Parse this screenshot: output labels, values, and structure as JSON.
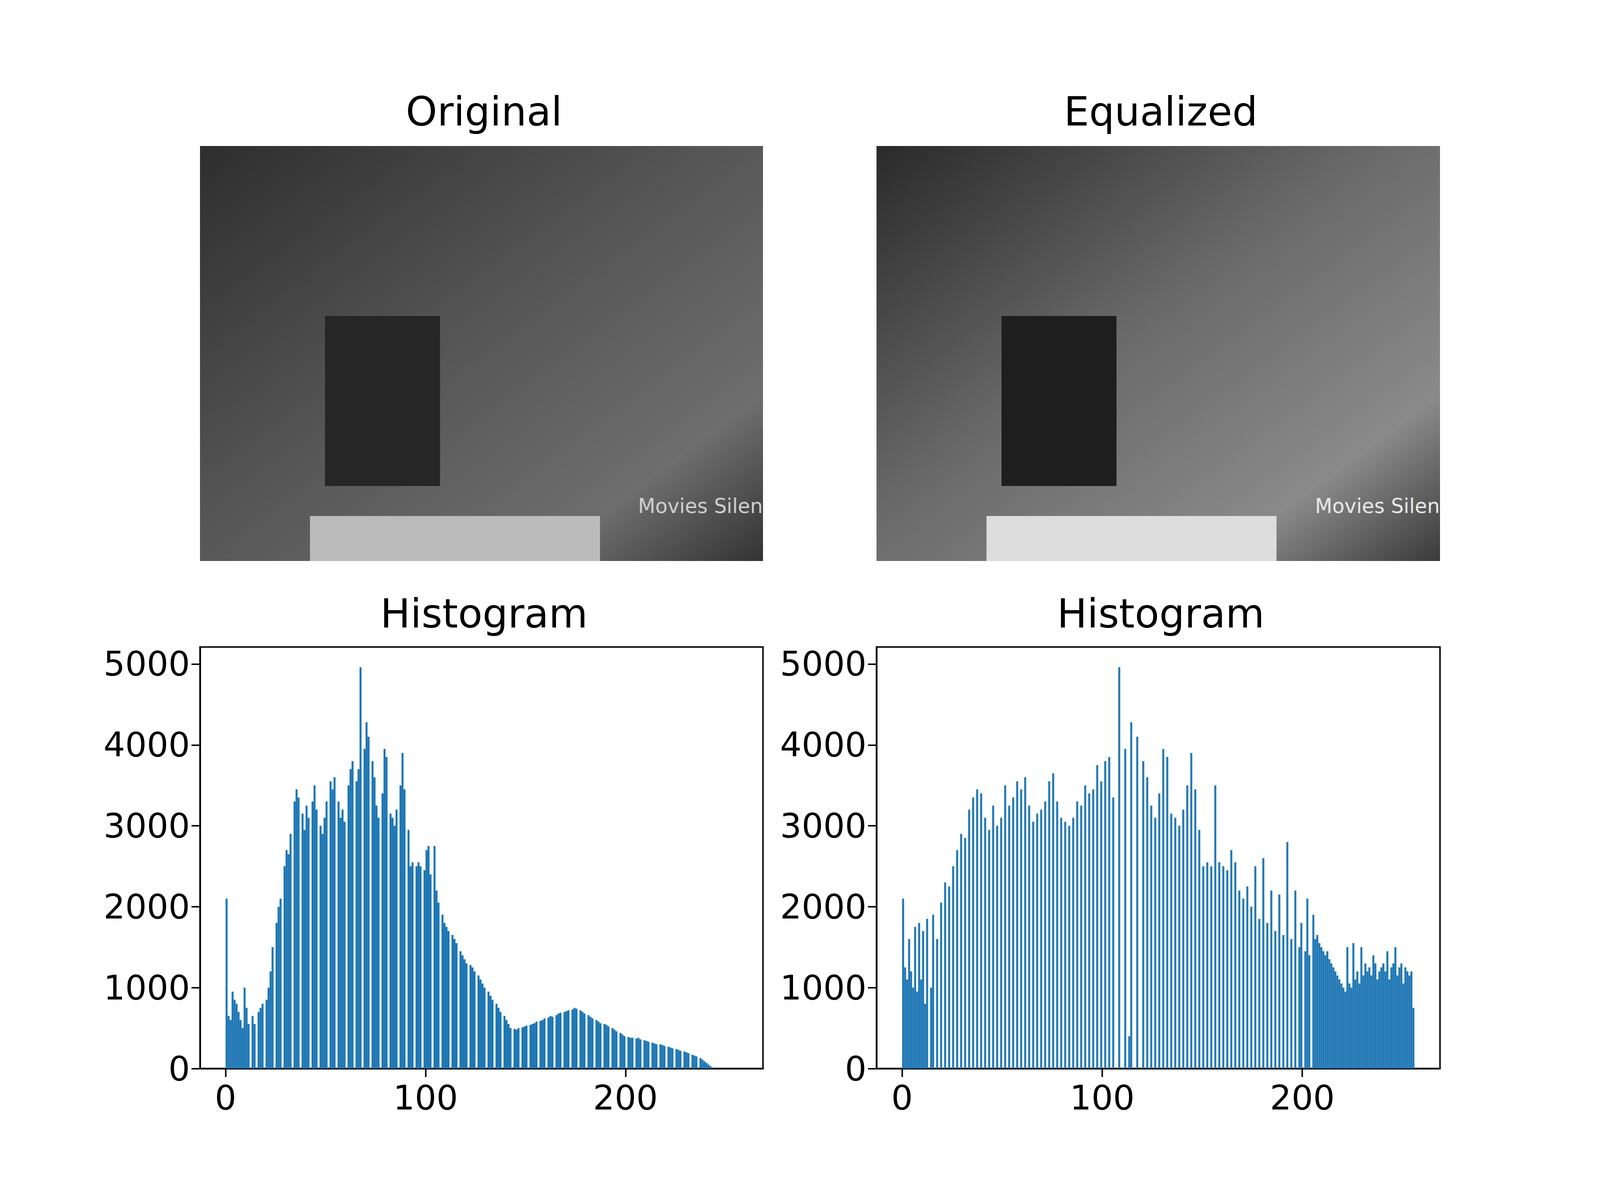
{
  "chart_data": [
    {
      "type": "image",
      "title": "Original",
      "text": "Movies Silen"
    },
    {
      "type": "image",
      "title": "Equalized",
      "text": "Movies Silen"
    },
    {
      "type": "histogram",
      "title": "Histogram",
      "color": "#1f77b4",
      "bins": [
        0,
        1,
        2,
        3,
        4,
        5,
        6,
        7,
        8,
        9,
        10,
        11,
        12,
        13,
        14,
        15,
        16,
        17,
        18,
        19,
        20,
        21,
        22,
        23,
        24,
        25,
        26,
        27,
        28,
        29,
        30,
        31,
        32,
        33,
        34,
        35,
        36,
        37,
        38,
        39,
        40,
        41,
        42,
        43,
        44,
        45,
        46,
        47,
        48,
        49,
        50,
        51,
        52,
        53,
        54,
        55,
        56,
        57,
        58,
        59,
        60,
        61,
        62,
        63,
        64,
        65,
        66,
        67,
        68,
        69,
        70,
        71,
        72,
        73,
        74,
        75,
        76,
        77,
        78,
        79,
        80,
        81,
        82,
        83,
        84,
        85,
        86,
        87,
        88,
        89,
        90,
        91,
        92,
        93,
        94,
        95,
        96,
        97,
        98,
        99,
        100,
        101,
        102,
        103,
        104,
        105,
        106,
        107,
        108,
        109,
        110,
        111,
        112,
        113,
        114,
        115,
        116,
        117,
        118,
        119,
        120,
        121,
        122,
        123,
        124,
        125,
        126,
        127,
        128,
        129,
        130,
        131,
        132,
        133,
        134,
        135,
        136,
        137,
        138,
        139,
        140,
        141,
        142,
        143,
        144,
        145,
        146,
        147,
        148,
        149,
        150,
        151,
        152,
        153,
        154,
        155,
        156,
        157,
        158,
        159,
        160,
        161,
        162,
        163,
        164,
        165,
        166,
        167,
        168,
        169,
        170,
        171,
        172,
        173,
        174,
        175,
        176,
        177,
        178,
        179,
        180,
        181,
        182,
        183,
        184,
        185,
        186,
        187,
        188,
        189,
        190,
        191,
        192,
        193,
        194,
        195,
        196,
        197,
        198,
        199,
        200,
        201,
        202,
        203,
        204,
        205,
        206,
        207,
        208,
        209,
        210,
        211,
        212,
        213,
        214,
        215,
        216,
        217,
        218,
        219,
        220,
        221,
        222,
        223,
        224,
        225,
        226,
        227,
        228,
        229,
        230,
        231,
        232,
        233,
        234,
        235,
        236,
        237,
        238,
        239,
        240,
        241,
        242,
        243,
        244,
        245,
        246,
        247,
        248,
        249,
        250,
        251,
        252,
        253,
        254,
        255,
        256
      ],
      "counts": [
        2100,
        650,
        600,
        950,
        850,
        800,
        700,
        600,
        500,
        1000,
        750,
        550,
        0,
        650,
        550,
        0,
        700,
        750,
        800,
        0,
        850,
        1000,
        1200,
        1500,
        0,
        1800,
        2000,
        2100,
        0,
        2500,
        2700,
        2650,
        2900,
        0,
        3300,
        3450,
        3350,
        0,
        3150,
        2950,
        3250,
        3100,
        0,
        3300,
        3500,
        3200,
        0,
        3000,
        2900,
        3100,
        3300,
        0,
        3550,
        3450,
        3600,
        0,
        3300,
        3100,
        3200,
        3050,
        0,
        3500,
        3700,
        3800,
        0,
        3550,
        3700,
        4960,
        0,
        3950,
        4280,
        4100,
        0,
        3800,
        3600,
        3250,
        3100,
        0,
        3400,
        3950,
        3850,
        0,
        3150,
        3100,
        3000,
        3200,
        0,
        3500,
        3900,
        3450,
        0,
        2950,
        2500,
        2550,
        0,
        2500,
        2550,
        2500,
        0,
        2450,
        2700,
        2750,
        2400,
        0,
        2750,
        2200,
        2050,
        0,
        1900,
        1800,
        1750,
        1700,
        0,
        1650,
        1600,
        1550,
        0,
        1450,
        1400,
        1350,
        1300,
        0,
        1280,
        1250,
        1200,
        0,
        1150,
        1100,
        1050,
        1000,
        0,
        950,
        900,
        850,
        0,
        800,
        750,
        700,
        0,
        650,
        600,
        550,
        500,
        0,
        490,
        480,
        500,
        0,
        510,
        520,
        530,
        0,
        540,
        550,
        560,
        580,
        0,
        590,
        600,
        620,
        0,
        630,
        650,
        640,
        0,
        660,
        680,
        690,
        0,
        700,
        710,
        720,
        0,
        730,
        750,
        740,
        0,
        720,
        700,
        680,
        0,
        660,
        640,
        620,
        0,
        600,
        580,
        560,
        0,
        550,
        540,
        520,
        0,
        500,
        480,
        460,
        0,
        440,
        420,
        400,
        0,
        390,
        380,
        380,
        0,
        370,
        380,
        360,
        0,
        350,
        340,
        330,
        0,
        320,
        310,
        300,
        0,
        300,
        290,
        280,
        0,
        270,
        260,
        250,
        0,
        240,
        230,
        220,
        0,
        210,
        200,
        190,
        0,
        170,
        160,
        150,
        0,
        130,
        110,
        90,
        70,
        50,
        30,
        10,
        0,
        0,
        0,
        0,
        0,
        0,
        0,
        0,
        0,
        0,
        0,
        0
      ],
      "xlim": [
        -12.8,
        268.8
      ],
      "xticks": [
        0,
        100,
        200
      ],
      "ylim": [
        0,
        5210
      ],
      "yticks": [
        0,
        1000,
        2000,
        3000,
        4000,
        5000
      ]
    },
    {
      "type": "histogram",
      "title": "Histogram",
      "color": "#1f77b4",
      "bins": [
        0,
        1,
        2,
        3,
        4,
        5,
        6,
        7,
        8,
        9,
        10,
        11,
        12,
        13,
        14,
        15,
        16,
        17,
        18,
        19,
        20,
        21,
        22,
        23,
        24,
        25,
        26,
        27,
        28,
        29,
        30,
        31,
        32,
        33,
        34,
        35,
        36,
        37,
        38,
        39,
        40,
        41,
        42,
        43,
        44,
        45,
        46,
        47,
        48,
        49,
        50,
        51,
        52,
        53,
        54,
        55,
        56,
        57,
        58,
        59,
        60,
        61,
        62,
        63,
        64,
        65,
        66,
        67,
        68,
        69,
        70,
        71,
        72,
        73,
        74,
        75,
        76,
        77,
        78,
        79,
        80,
        81,
        82,
        83,
        84,
        85,
        86,
        87,
        88,
        89,
        90,
        91,
        92,
        93,
        94,
        95,
        96,
        97,
        98,
        99,
        100,
        101,
        102,
        103,
        104,
        105,
        106,
        107,
        108,
        109,
        110,
        111,
        112,
        113,
        114,
        115,
        116,
        117,
        118,
        119,
        120,
        121,
        122,
        123,
        124,
        125,
        126,
        127,
        128,
        129,
        130,
        131,
        132,
        133,
        134,
        135,
        136,
        137,
        138,
        139,
        140,
        141,
        142,
        143,
        144,
        145,
        146,
        147,
        148,
        149,
        150,
        151,
        152,
        153,
        154,
        155,
        156,
        157,
        158,
        159,
        160,
        161,
        162,
        163,
        164,
        165,
        166,
        167,
        168,
        169,
        170,
        171,
        172,
        173,
        174,
        175,
        176,
        177,
        178,
        179,
        180,
        181,
        182,
        183,
        184,
        185,
        186,
        187,
        188,
        189,
        190,
        191,
        192,
        193,
        194,
        195,
        196,
        197,
        198,
        199,
        200,
        201,
        202,
        203,
        204,
        205,
        206,
        207,
        208,
        209,
        210,
        211,
        212,
        213,
        214,
        215,
        216,
        217,
        218,
        219,
        220,
        221,
        222,
        223,
        224,
        225,
        226,
        227,
        228,
        229,
        230,
        231,
        232,
        233,
        234,
        235,
        236,
        237,
        238,
        239,
        240,
        241,
        242,
        243,
        244,
        245,
        246,
        247,
        248,
        249,
        250,
        251,
        252,
        253,
        254,
        255,
        256
      ],
      "counts": [
        2100,
        1250,
        1100,
        1600,
        1200,
        1000,
        1750,
        950,
        1800,
        1100,
        1700,
        800,
        1850,
        0,
        1000,
        1900,
        0,
        1600,
        0,
        2050,
        0,
        2300,
        0,
        2250,
        0,
        2500,
        0,
        2700,
        0,
        2900,
        0,
        2850,
        0,
        3200,
        0,
        3350,
        0,
        3450,
        0,
        3400,
        0,
        3100,
        0,
        2950,
        0,
        3250,
        0,
        3000,
        0,
        3100,
        0,
        3500,
        0,
        3250,
        0,
        3350,
        0,
        3550,
        0,
        3450,
        0,
        3600,
        0,
        3250,
        0,
        3050,
        0,
        3150,
        0,
        3200,
        0,
        3300,
        0,
        3550,
        0,
        3650,
        0,
        3300,
        0,
        3100,
        0,
        3050,
        0,
        3000,
        0,
        3100,
        0,
        3300,
        0,
        3250,
        0,
        3500,
        0,
        3400,
        0,
        3450,
        0,
        3750,
        0,
        3550,
        0,
        3800,
        0,
        3850,
        0,
        3350,
        0,
        0,
        4960,
        0,
        0,
        3950,
        0,
        400,
        4280,
        0,
        0,
        4100,
        0,
        0,
        3800,
        0,
        3600,
        0,
        3250,
        0,
        3100,
        0,
        3400,
        0,
        3950,
        0,
        3850,
        0,
        3150,
        0,
        3100,
        0,
        3000,
        0,
        3200,
        0,
        3500,
        0,
        3900,
        0,
        3450,
        0,
        2950,
        0,
        2500,
        0,
        2550,
        0,
        2500,
        0,
        3500,
        0,
        2550,
        0,
        2500,
        0,
        2450,
        0,
        2700,
        0,
        2550,
        0,
        2200,
        0,
        2100,
        0,
        2250,
        0,
        2000,
        0,
        2500,
        0,
        1850,
        0,
        2600,
        0,
        1800,
        0,
        2200,
        0,
        1700,
        0,
        2150,
        0,
        1650,
        0,
        2800,
        0,
        1600,
        0,
        2200,
        0,
        1500,
        1800,
        0,
        1450,
        2100,
        1400,
        0,
        1900,
        1600,
        1650,
        1550,
        1500,
        1450,
        1400,
        1450,
        1350,
        1300,
        1250,
        1200,
        1150,
        1100,
        1050,
        1000,
        950,
        1500,
        1050,
        1000,
        1550,
        1100,
        1200,
        1050,
        1500,
        1150,
        1300,
        1200,
        1250,
        1150,
        1400,
        1300,
        1100,
        1200,
        1250,
        1300,
        1200,
        1450,
        1100,
        1250,
        1300,
        1500,
        1150,
        1250,
        1300,
        1050,
        1250,
        1200,
        1150,
        1200,
        750
      ],
      "xlim": [
        -12.8,
        268.8
      ],
      "xticks": [
        0,
        100,
        200
      ],
      "ylim": [
        0,
        5210
      ],
      "yticks": [
        0,
        1000,
        2000,
        3000,
        4000,
        5000
      ]
    }
  ]
}
